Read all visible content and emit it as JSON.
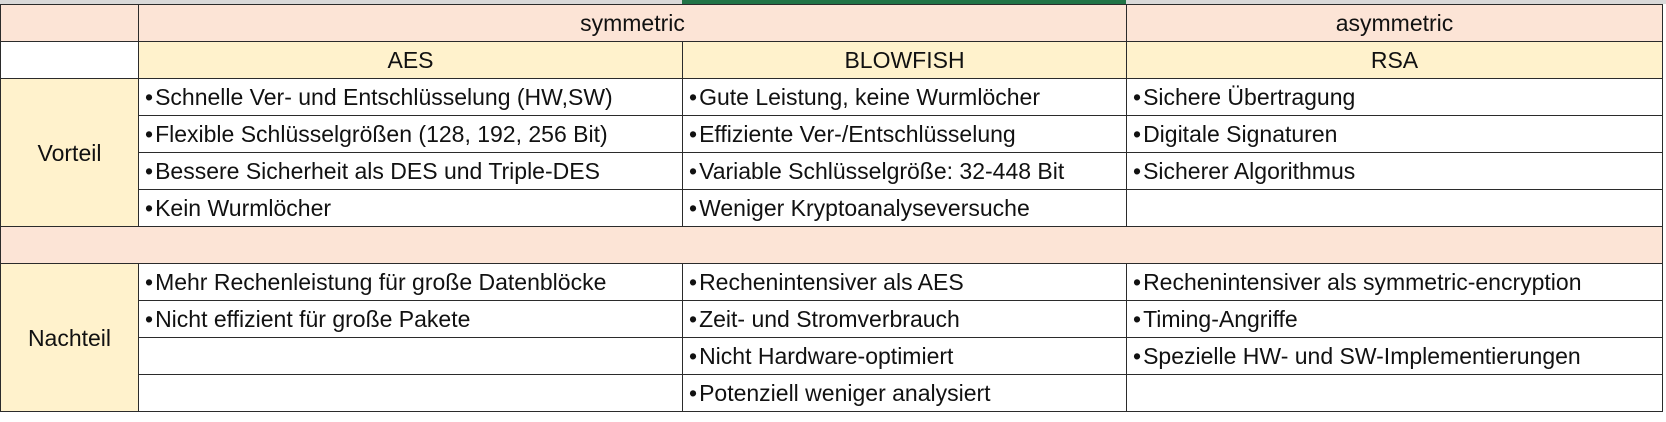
{
  "header": {
    "group_symmetric": "symmetric",
    "group_asymmetric": "asymmetric",
    "col_aes": "AES",
    "col_blowfish": "BLOWFISH",
    "col_rsa": "RSA"
  },
  "bullet": "•",
  "vorteil": {
    "label": "Vorteil",
    "rows": [
      {
        "aes": "Schnelle Ver- und Entschlüsselung (HW,SW)",
        "blowfish": "Gute Leistung, keine Wurmlöcher",
        "rsa": "Sichere Übertragung"
      },
      {
        "aes": "Flexible Schlüsselgrößen (128, 192, 256 Bit)",
        "blowfish": "Effiziente Ver-/Entschlüsselung",
        "rsa": "Digitale Signaturen"
      },
      {
        "aes": "Bessere Sicherheit als DES und Triple-DES",
        "blowfish": "Variable Schlüsselgröße: 32-448 Bit",
        "rsa": "Sicherer Algorithmus"
      },
      {
        "aes": "Kein Wurmlöcher",
        "blowfish": "Weniger Kryptoanalyseversuche",
        "rsa": ""
      }
    ]
  },
  "nachteil": {
    "label": "Nachteil",
    "rows": [
      {
        "aes": "Mehr Rechenleistung für große Datenblöcke",
        "blowfish": "Rechenintensiver als AES",
        "rsa": "Rechenintensiver als symmetric-encryption"
      },
      {
        "aes": "Nicht effizient für große Pakete",
        "blowfish": "Zeit- und Stromverbrauch",
        "rsa": "Timing-Angriffe"
      },
      {
        "aes": "",
        "blowfish": "Nicht Hardware-optimiert",
        "rsa": "Spezielle HW- und SW-Implementierungen"
      },
      {
        "aes": "",
        "blowfish": "Potenziell weniger analysiert",
        "rsa": ""
      }
    ]
  }
}
